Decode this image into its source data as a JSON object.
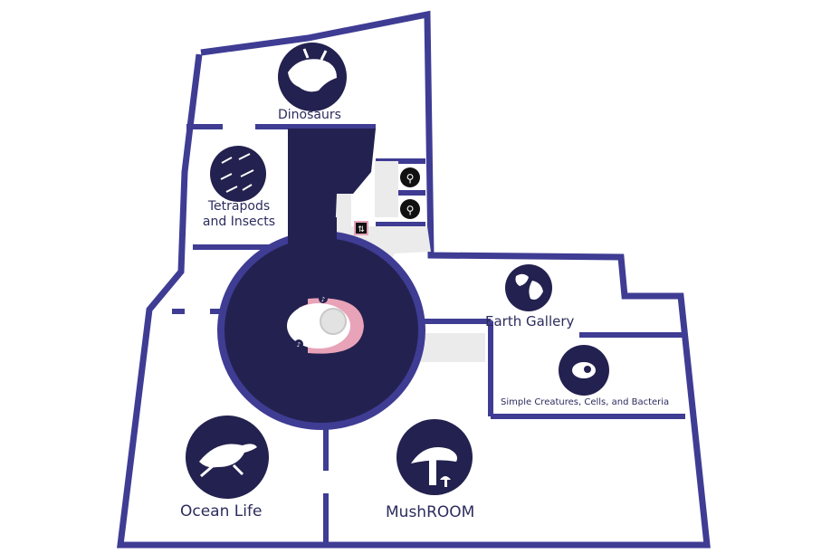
{
  "colors": {
    "wall": "#3f3c94",
    "atrium": "#23214f",
    "floor": "#ffffff",
    "icon_circle": "#23214f",
    "accent_pink": "#e8a3b8",
    "corridor": "#ebebeb"
  },
  "galleries": {
    "dinosaurs": {
      "label": "Dinosaurs",
      "icon": "triceratops-icon"
    },
    "tetrapods": {
      "label_line1": "Tetrapods",
      "label_line2": "and Insects",
      "icon": "tetrapods-insects-icon"
    },
    "earth": {
      "label": "Earth Gallery",
      "icon": "globe-icon"
    },
    "simple": {
      "label": "Simple Creatures, Cells, and Bacteria",
      "icon": "cell-icon"
    },
    "ocean": {
      "label": "Ocean Life",
      "icon": "sea-turtle-icon"
    },
    "mushroom": {
      "label": "MushROOM",
      "icon": "mushroom-icon"
    }
  },
  "facilities": {
    "restroom_1": "restroom-icon",
    "restroom_2": "restroom-icon",
    "elevator": "elevator-icon",
    "info_marker_1": "info-marker-icon",
    "info_marker_2": "info-marker-icon"
  }
}
